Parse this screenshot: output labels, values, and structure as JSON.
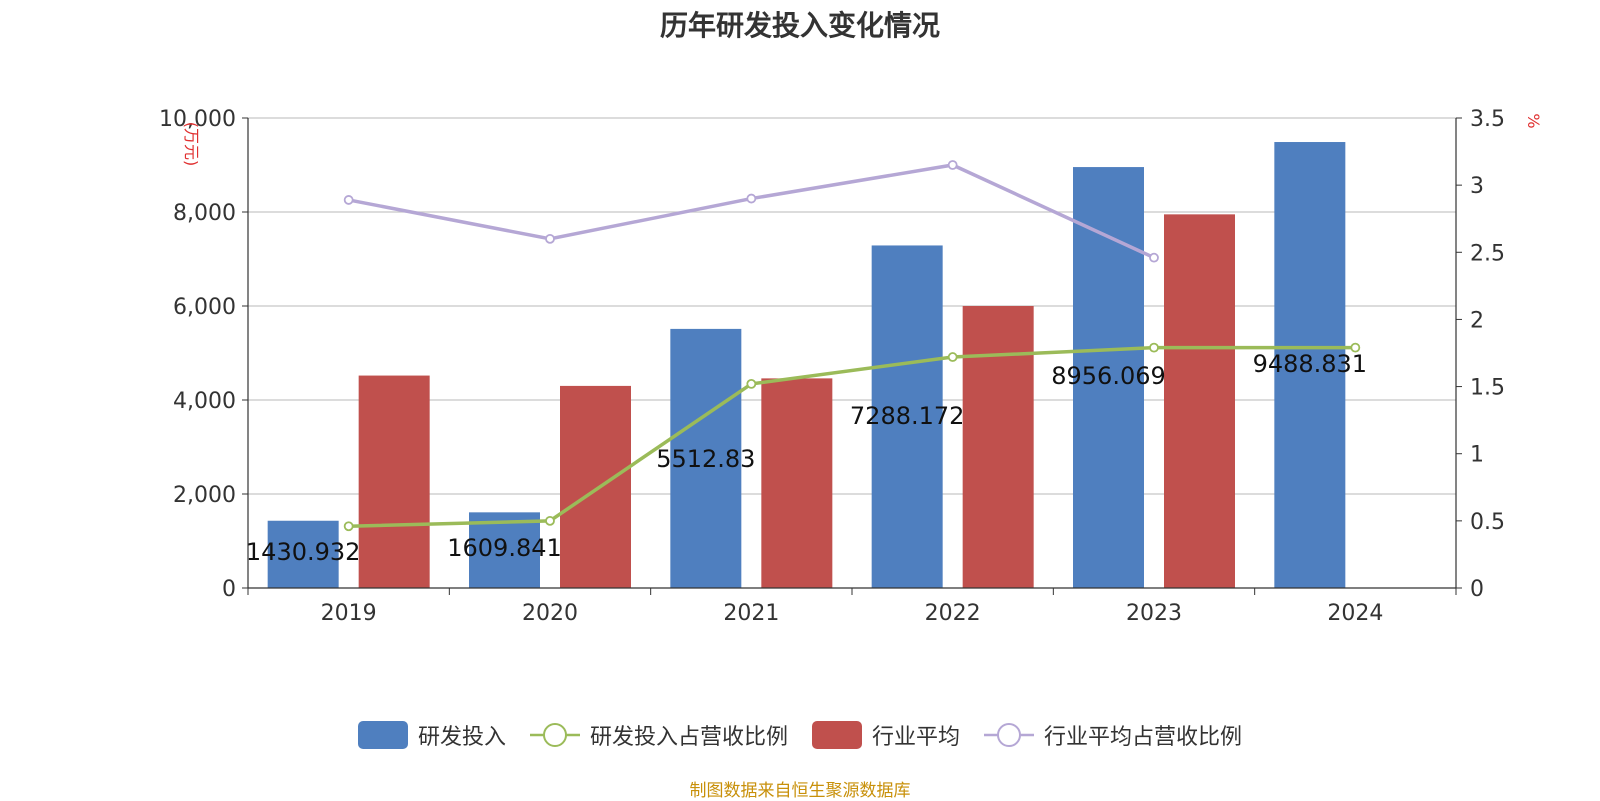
{
  "title": "历年研发投入变化情况",
  "source": "制图数据来自恒生聚源数据库",
  "colors": {
    "rd": "#4f7fbf",
    "industry": "#c0504d",
    "rd_ratio": "#9bbb59",
    "industry_ratio": "#b5a7d5"
  },
  "chart_data": {
    "type": "bar",
    "categories": [
      "2019",
      "2020",
      "2021",
      "2022",
      "2023",
      "2024"
    ],
    "y_left": {
      "label": "万元",
      "ticks": [
        "0",
        "2,000",
        "4,000",
        "6,000",
        "8,000",
        "10,000"
      ],
      "range": [
        0,
        10000
      ]
    },
    "y_right": {
      "label": "%",
      "ticks": [
        "0",
        "0.5",
        "1",
        "1.5",
        "2",
        "2.5",
        "3",
        "3.5"
      ],
      "range": [
        0,
        3.5
      ]
    },
    "series": [
      {
        "name": "研发投入",
        "type": "bar",
        "axis": "left",
        "values": [
          1430.932,
          1609.841,
          5512.83,
          7288.172,
          8956.069,
          9488.831
        ],
        "labels": [
          "1430.932",
          "1609.841",
          "5512.83",
          "7288.172",
          "8956.069",
          "9488.831"
        ]
      },
      {
        "name": "研发投入占营收比例",
        "type": "line",
        "axis": "right",
        "values": [
          0.46,
          0.5,
          1.52,
          1.72,
          1.79,
          1.79
        ]
      },
      {
        "name": "行业平均",
        "type": "bar",
        "axis": "left",
        "values": [
          4520,
          4300,
          4460,
          6000,
          7950,
          null
        ]
      },
      {
        "name": "行业平均占营收比例",
        "type": "line",
        "axis": "right",
        "values": [
          2.89,
          2.6,
          2.9,
          3.15,
          2.46,
          null
        ]
      }
    ],
    "grid": true,
    "legend_position": "bottom"
  }
}
